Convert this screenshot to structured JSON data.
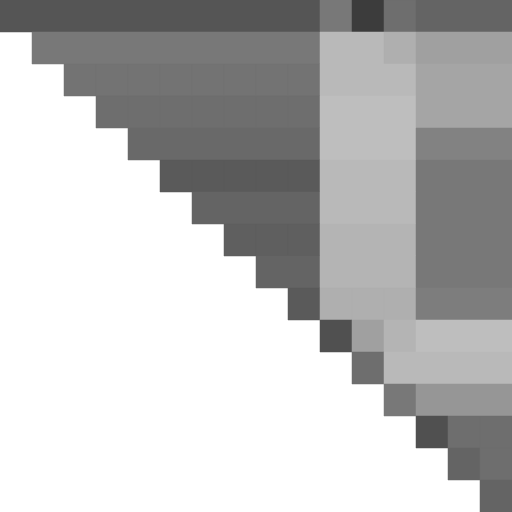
{
  "chart_data": {
    "type": "heatmap",
    "tick_labels": false,
    "grid": false,
    "xlim": [
      0,
      16
    ],
    "ylim": [
      0,
      16
    ],
    "zlim": [
      0,
      255
    ],
    "cells": [
      [
        85,
        85,
        85,
        85,
        85,
        85,
        85,
        85,
        85,
        85,
        120,
        60,
        110,
        100,
        100,
        100
      ],
      [
        null,
        120,
        120,
        120,
        120,
        120,
        120,
        120,
        120,
        120,
        185,
        185,
        175,
        160,
        160,
        160
      ],
      [
        null,
        null,
        115,
        115,
        115,
        115,
        115,
        115,
        115,
        115,
        185,
        185,
        185,
        165,
        165,
        165
      ],
      [
        null,
        null,
        null,
        110,
        110,
        110,
        110,
        110,
        110,
        110,
        190,
        190,
        190,
        165,
        165,
        165
      ],
      [
        null,
        null,
        null,
        null,
        105,
        105,
        105,
        105,
        105,
        105,
        190,
        190,
        190,
        130,
        130,
        130
      ],
      [
        null,
        null,
        null,
        null,
        null,
        90,
        90,
        90,
        90,
        90,
        185,
        185,
        185,
        120,
        120,
        120
      ],
      [
        null,
        null,
        null,
        null,
        null,
        null,
        100,
        100,
        100,
        100,
        185,
        185,
        185,
        120,
        120,
        120
      ],
      [
        null,
        null,
        null,
        null,
        null,
        null,
        null,
        95,
        95,
        95,
        180,
        180,
        180,
        120,
        120,
        120
      ],
      [
        null,
        null,
        null,
        null,
        null,
        null,
        null,
        null,
        100,
        100,
        180,
        180,
        180,
        120,
        120,
        120
      ],
      [
        null,
        null,
        null,
        null,
        null,
        null,
        null,
        null,
        null,
        90,
        175,
        175,
        175,
        125,
        125,
        125
      ],
      [
        null,
        null,
        null,
        null,
        null,
        null,
        null,
        null,
        null,
        null,
        80,
        160,
        180,
        190,
        190,
        190
      ],
      [
        null,
        null,
        null,
        null,
        null,
        null,
        null,
        null,
        null,
        null,
        null,
        110,
        185,
        185,
        185,
        185
      ],
      [
        null,
        null,
        null,
        null,
        null,
        null,
        null,
        null,
        null,
        null,
        null,
        null,
        120,
        150,
        150,
        150
      ],
      [
        null,
        null,
        null,
        null,
        null,
        null,
        null,
        null,
        null,
        null,
        null,
        null,
        null,
        80,
        110,
        110
      ],
      [
        null,
        null,
        null,
        null,
        null,
        null,
        null,
        null,
        null,
        null,
        null,
        null,
        null,
        null,
        100,
        110
      ],
      [
        null,
        null,
        null,
        null,
        null,
        null,
        null,
        null,
        null,
        null,
        null,
        null,
        null,
        null,
        null,
        100
      ]
    ]
  }
}
